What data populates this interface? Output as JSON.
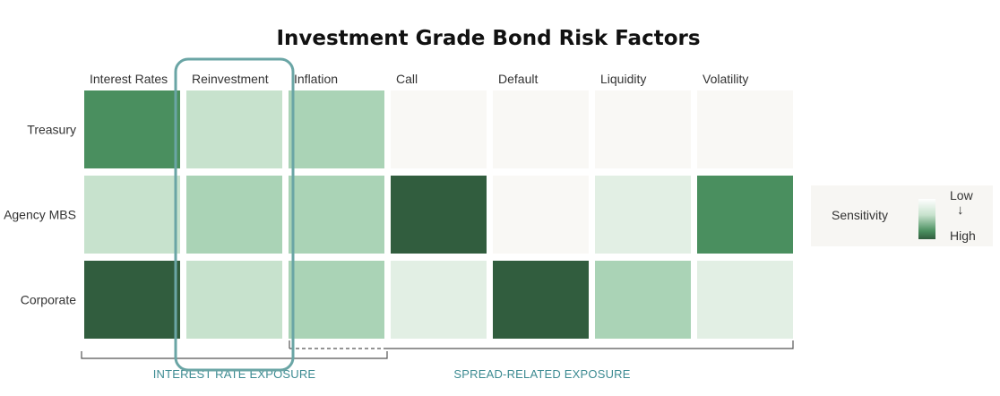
{
  "chart_data": {
    "type": "heatmap",
    "title": "Investment Grade Bond Risk Factors",
    "columns": [
      "Interest Rates",
      "Reinvestment",
      "Inflation",
      "Call",
      "Default",
      "Liquidity",
      "Volatility"
    ],
    "rows": [
      "Treasury",
      "Agency MBS",
      "Corporate"
    ],
    "values": [
      [
        4,
        2,
        3,
        0,
        0,
        0,
        0
      ],
      [
        2,
        3,
        3,
        5,
        0,
        1,
        4
      ],
      [
        5,
        2,
        3,
        1,
        5,
        3,
        1
      ]
    ],
    "scale": {
      "min": 0,
      "max": 5
    },
    "highlighted_column": "Reinvestment",
    "groups": [
      {
        "label": "INTEREST RATE EXPOSURE",
        "columns": [
          "Interest Rates",
          "Reinvestment",
          "Inflation"
        ]
      },
      {
        "label": "SPREAD-RELATED EXPOSURE",
        "columns": [
          "Inflation",
          "Call",
          "Default",
          "Liquidity",
          "Volatility"
        ]
      }
    ],
    "legend": {
      "title": "Sensitivity",
      "low": "Low",
      "high": "High",
      "arrow": "↓",
      "placement": "right"
    }
  },
  "colors": {
    "level_0": "#f9f8f5",
    "level_1": "#e2efe4",
    "level_2": "#c7e2cd",
    "level_3": "#aad3b6",
    "level_4": "#4a8f5f",
    "level_5": "#315d3e",
    "highlight_border": "#6aa5a5",
    "group_label": "#3d8b92",
    "bracket": "#555555"
  }
}
